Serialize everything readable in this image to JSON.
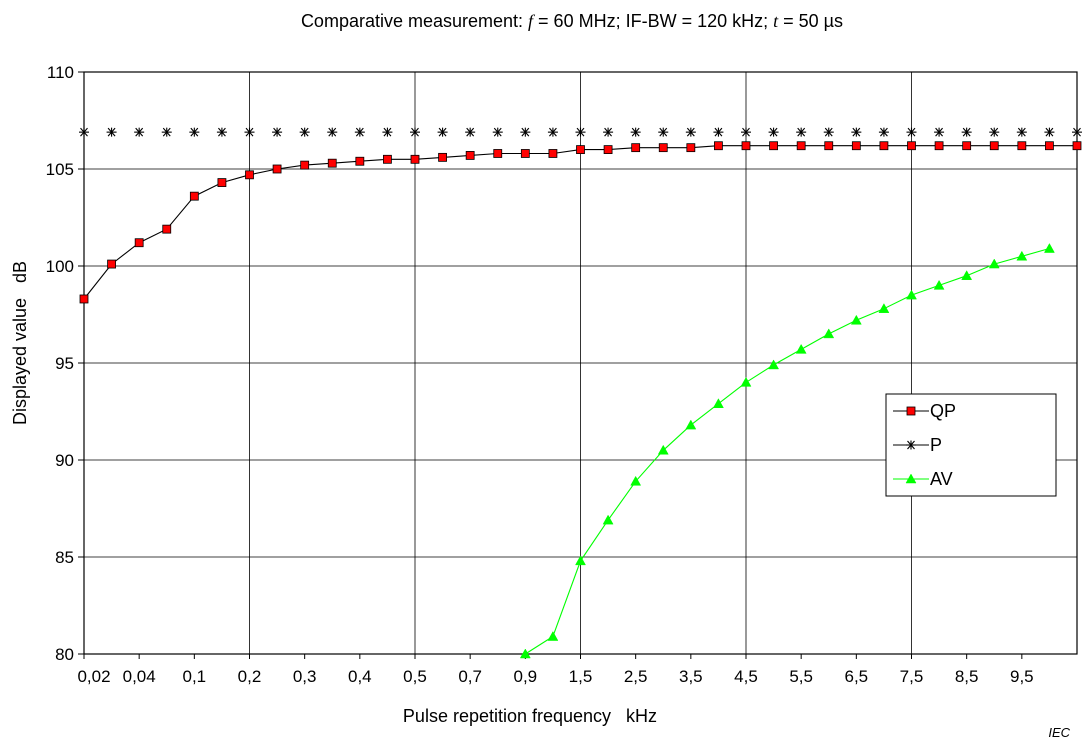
{
  "chart_data": {
    "type": "line",
    "title": {
      "prefix": "Comparative measurement: ",
      "f_symbol": "f",
      "f_value": " = 60 MHz; IF-BW = 120 kHz; ",
      "t_symbol": "t",
      "t_value": " = 50 µs"
    },
    "xlabel": "Pulse repetition frequency   kHz",
    "ylabel": "Displayed value   dB",
    "ylim": [
      80,
      110
    ],
    "yticks": [
      80,
      85,
      90,
      95,
      100,
      105,
      110
    ],
    "x_tick_labels": [
      "0,02",
      "0,04",
      "0,1",
      "0,2",
      "0,3",
      "0,4",
      "0,5",
      "0,7",
      "0,9",
      "1,5",
      "2,5",
      "3,5",
      "4,5",
      "5,5",
      "6,5",
      "7,5",
      "8,5",
      "9,5"
    ],
    "x_major_gridlines_at": [
      "0,2",
      "0,5",
      "1,5",
      "4,5",
      "7,5"
    ],
    "legend_position": "right",
    "grid": true,
    "watermark": "IEC",
    "series": [
      {
        "name": "QP",
        "color": "#ff0000",
        "line_color": "#000000",
        "marker": "square",
        "values": [
          98.3,
          100.1,
          101.2,
          101.9,
          103.6,
          104.3,
          104.7,
          105.0,
          105.2,
          105.3,
          105.4,
          105.5,
          105.5,
          105.6,
          105.7,
          105.8,
          105.8,
          105.8,
          106.0,
          106.0,
          106.1,
          106.1,
          106.1,
          106.2,
          106.2,
          106.2,
          106.2,
          106.2,
          106.2,
          106.2,
          106.2,
          106.2,
          106.2,
          106.2,
          106.2,
          106.2,
          106.2
        ]
      },
      {
        "name": "P",
        "color": "#000000",
        "marker": "asterisk",
        "values": [
          106.9,
          106.9,
          106.9,
          106.9,
          106.9,
          106.9,
          106.9,
          106.9,
          106.9,
          106.9,
          106.9,
          106.9,
          106.9,
          106.9,
          106.9,
          106.9,
          106.9,
          106.9,
          106.9,
          106.9,
          106.9,
          106.9,
          106.9,
          106.9,
          106.9,
          106.9,
          106.9,
          106.9,
          106.9,
          106.9,
          106.9,
          106.9,
          106.9,
          106.9,
          106.9,
          106.9,
          106.9
        ]
      },
      {
        "name": "AV",
        "color": "#00ff00",
        "marker": "triangle",
        "values": [
          null,
          null,
          null,
          null,
          null,
          null,
          null,
          null,
          null,
          null,
          null,
          null,
          null,
          null,
          null,
          null,
          80.0,
          80.9,
          84.8,
          86.9,
          88.9,
          90.5,
          91.8,
          92.9,
          94.0,
          94.9,
          95.7,
          96.5,
          97.2,
          97.8,
          98.5,
          99.0,
          99.5,
          100.1,
          100.5,
          100.9,
          null
        ]
      }
    ]
  }
}
